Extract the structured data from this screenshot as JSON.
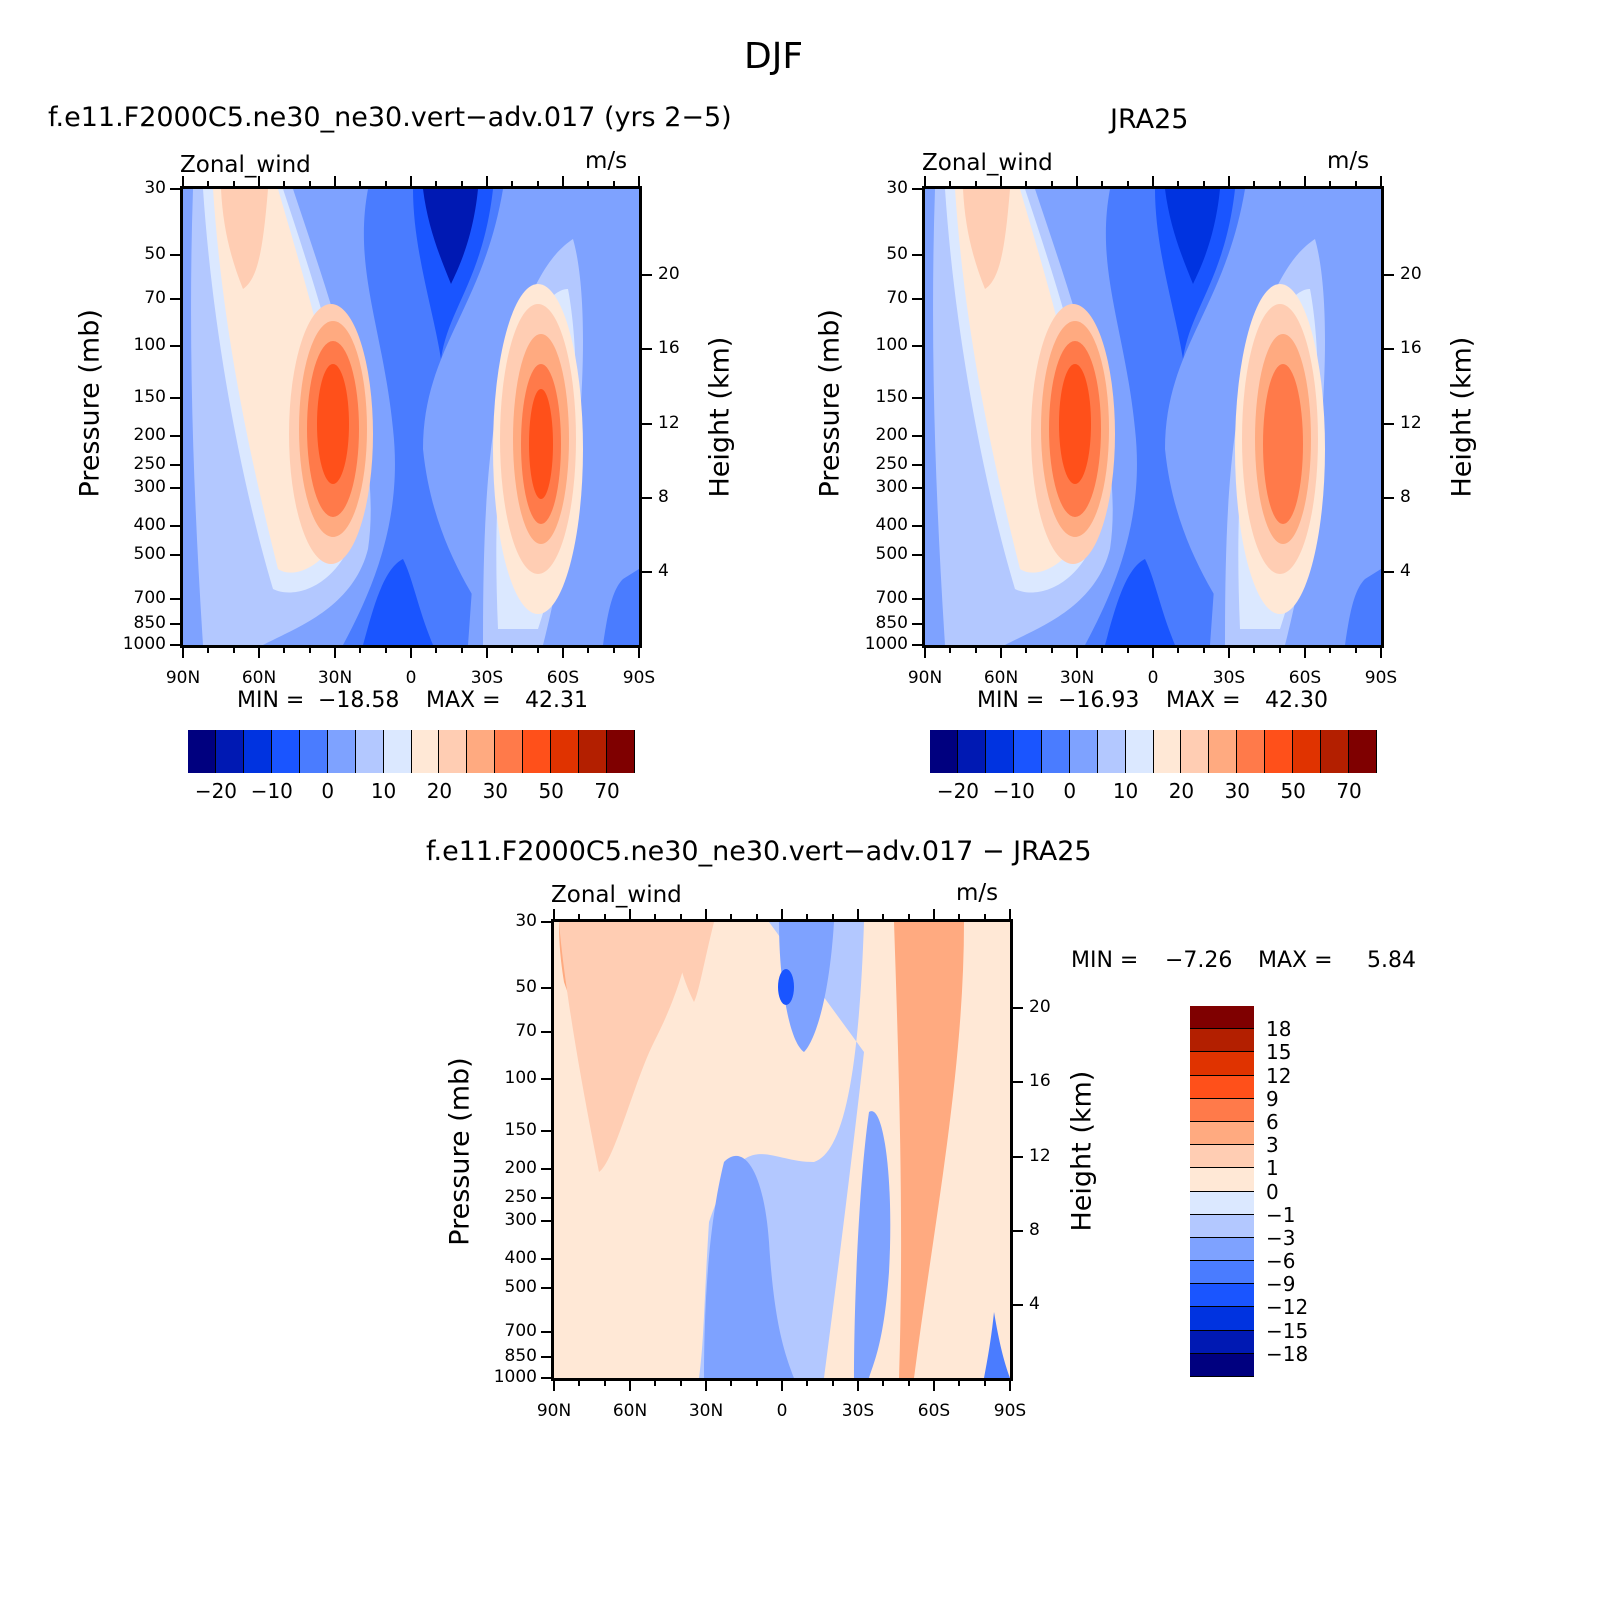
{
  "figure": {
    "title": "DJF",
    "panel1_title": "f.e11.F2000C5.ne30_ne30.vert−adv.017 (yrs 2−5)",
    "panel2_title": "JRA25",
    "panel3_title": "f.e11.F2000C5.ne30_ne30.vert−adv.017 − JRA25"
  },
  "chart_data": [
    {
      "type": "heatmap",
      "title": "f.e11.F2000C5.ne30_ne30.vert−adv.017 (yrs 2−5)",
      "left_string": "Zonal_wind",
      "units": "m/s",
      "ylabel": "Pressure (mb)",
      "ylabel_right": "Height (km)",
      "x_ticks": [
        "90N",
        "60N",
        "30N",
        "0",
        "30S",
        "60S",
        "90S"
      ],
      "y_ticks": [
        "30",
        "50",
        "70",
        "100",
        "150",
        "200",
        "250",
        "300",
        "400",
        "500",
        "700",
        "850",
        "1000"
      ],
      "y_right_ticks": [
        "20",
        "16",
        "12",
        "8",
        "4"
      ],
      "min_label": "MIN =",
      "min_value": "−18.58",
      "max_label": "MAX =",
      "max_value": "42.31",
      "colorbar_labels": [
        "−20",
        "−10",
        "0",
        "10",
        "20",
        "30",
        "50",
        "70"
      ],
      "cores": [
        {
          "lat": 30,
          "p": 200,
          "max_ms": 42
        },
        {
          "lat": -50,
          "p": 250,
          "max_ms": 38
        },
        {
          "lat": -15,
          "p": 40,
          "min_ms": -18
        }
      ]
    },
    {
      "type": "heatmap",
      "title": "JRA25",
      "left_string": "Zonal_wind",
      "units": "m/s",
      "ylabel": "Pressure (mb)",
      "ylabel_right": "Height (km)",
      "x_ticks": [
        "90N",
        "60N",
        "30N",
        "0",
        "30S",
        "60S",
        "90S"
      ],
      "y_ticks": [
        "30",
        "50",
        "70",
        "100",
        "150",
        "200",
        "250",
        "300",
        "400",
        "500",
        "700",
        "850",
        "1000"
      ],
      "y_right_ticks": [
        "20",
        "16",
        "12",
        "8",
        "4"
      ],
      "min_label": "MIN =",
      "min_value": "−16.93",
      "max_label": "MAX =",
      "max_value": "42.30",
      "colorbar_labels": [
        "−20",
        "−10",
        "0",
        "10",
        "20",
        "30",
        "50",
        "70"
      ],
      "cores": [
        {
          "lat": 30,
          "p": 200,
          "max_ms": 42
        },
        {
          "lat": -47,
          "p": 250,
          "max_ms": 33
        },
        {
          "lat": -12,
          "p": 40,
          "min_ms": -16
        }
      ]
    },
    {
      "type": "heatmap",
      "title": "f.e11.F2000C5.ne30_ne30.vert−adv.017 − JRA25",
      "left_string": "Zonal_wind",
      "units": "m/s",
      "ylabel": "Pressure (mb)",
      "ylabel_right": "Height (km)",
      "x_ticks": [
        "90N",
        "60N",
        "30N",
        "0",
        "30S",
        "60S",
        "90S"
      ],
      "y_ticks": [
        "30",
        "50",
        "70",
        "100",
        "150",
        "200",
        "250",
        "300",
        "400",
        "500",
        "700",
        "850",
        "1000"
      ],
      "y_right_ticks": [
        "20",
        "16",
        "12",
        "8",
        "4"
      ],
      "min_label": "MIN =",
      "min_value": "−7.26",
      "max_label": "MAX =",
      "max_value": "5.84",
      "colorbar_labels": [
        "18",
        "15",
        "12",
        "9",
        "6",
        "3",
        "1",
        "0",
        "−1",
        "−3",
        "−6",
        "−9",
        "−12",
        "−15",
        "−18"
      ],
      "colorbar_orientation": "vertical"
    }
  ],
  "colors": {
    "main_scale": [
      "#00007f",
      "#0019b3",
      "#0033e0",
      "#1a55ff",
      "#4a7cff",
      "#7ea2ff",
      "#b3c8ff",
      "#dbe8ff",
      "#ffe8d6",
      "#ffcdb3",
      "#ffaa80",
      "#ff7a4a",
      "#ff501a",
      "#e03300",
      "#b31f00",
      "#7f0000"
    ],
    "diff_scale_top_to_bottom": [
      "#7f0000",
      "#b31f00",
      "#e03300",
      "#ff501a",
      "#ff7a4a",
      "#ffaa80",
      "#ffcdb3",
      "#ffe8d6",
      "#dbe8ff",
      "#b3c8ff",
      "#7ea2ff",
      "#4a7cff",
      "#1a55ff",
      "#0033e0",
      "#0019b3",
      "#00007f"
    ]
  }
}
